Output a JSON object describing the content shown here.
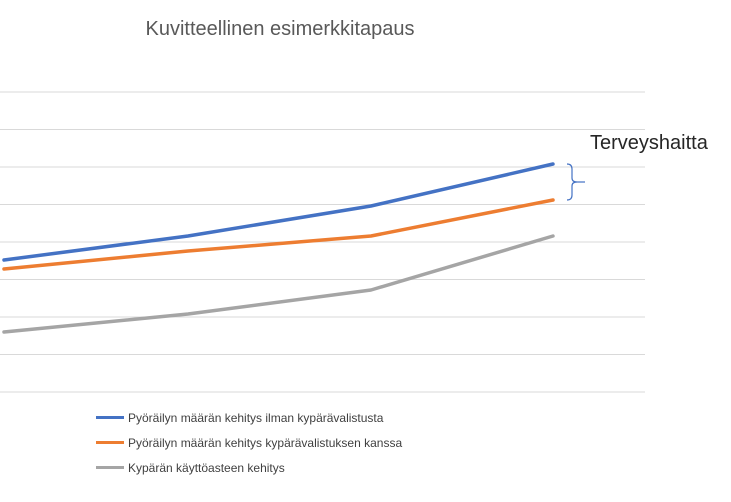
{
  "chart_data": {
    "type": "line",
    "title": "Kuvitteellinen esimerkkitapaus",
    "xlabel": "",
    "ylabel": "",
    "ylim": [
      0,
      10
    ],
    "x": [
      0,
      1,
      2,
      3
    ],
    "grid": true,
    "legend_position": "bottom",
    "series": [
      {
        "name": "Pyöräilyn määrän kehitys ilman kypärävalistusta",
        "color": "#4472C4",
        "values": [
          4.4,
          5.2,
          6.2,
          7.6
        ]
      },
      {
        "name": "Pyöräilyn määrän kehitys kypärävalistuksen kanssa",
        "color": "#ED7D31",
        "values": [
          4.1,
          4.7,
          5.2,
          6.4
        ]
      },
      {
        "name": "Kypärän käyttöasteen kehitys",
        "color": "#A5A5A5",
        "values": [
          2.0,
          2.6,
          3.4,
          5.2
        ]
      }
    ],
    "annotation": {
      "text": "Terveyshaitta",
      "between_series": [
        0,
        1
      ]
    }
  },
  "gridline_color": "#D9D9D9"
}
